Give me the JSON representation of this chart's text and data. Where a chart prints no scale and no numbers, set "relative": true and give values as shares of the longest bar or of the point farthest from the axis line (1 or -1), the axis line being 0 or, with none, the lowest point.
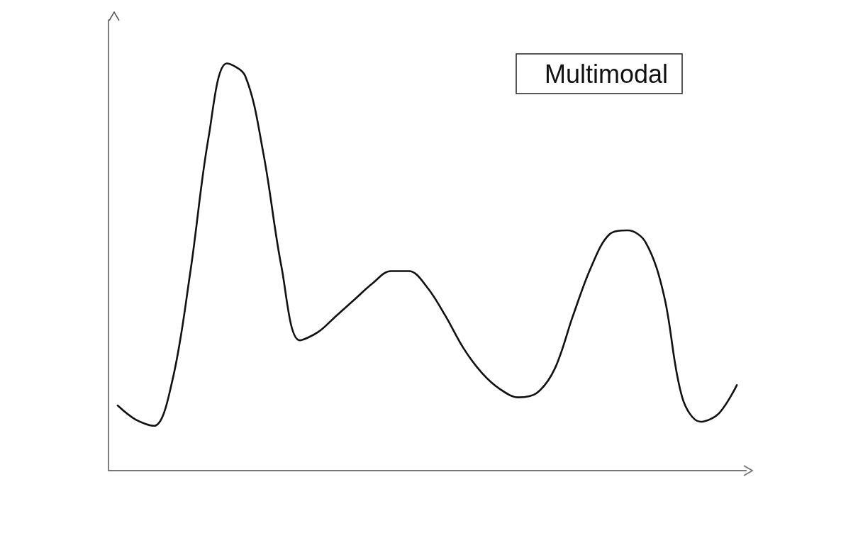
{
  "chart_data": {
    "type": "line",
    "title": "Multimodal",
    "relative": true,
    "grid": false,
    "marker": "none",
    "line_style": "solid",
    "categories": [
      null,
      null,
      null,
      null,
      null,
      null,
      null,
      null,
      null,
      null,
      null,
      null,
      null,
      null,
      null,
      null,
      null,
      null,
      null,
      null,
      null,
      null,
      null,
      null,
      null,
      null,
      null,
      null,
      null,
      null,
      null,
      null,
      null,
      null,
      null
    ],
    "series": [
      {
        "color": "#111111",
        "values": [
          0.16,
          0.125,
          0.11,
          0.22,
          0.49,
          0.82,
          1,
          0.97,
          0.78,
          0.5,
          0.32,
          0.34,
          0.38,
          0.42,
          0.46,
          0.49,
          0.49,
          0.45,
          0.38,
          0.3,
          0.24,
          0.2,
          0.18,
          0.19,
          0.25,
          0.38,
          0.5,
          0.58,
          0.59,
          0.56,
          0.43,
          0.18,
          0.12,
          0.14,
          0.21
        ]
      }
    ]
  }
}
